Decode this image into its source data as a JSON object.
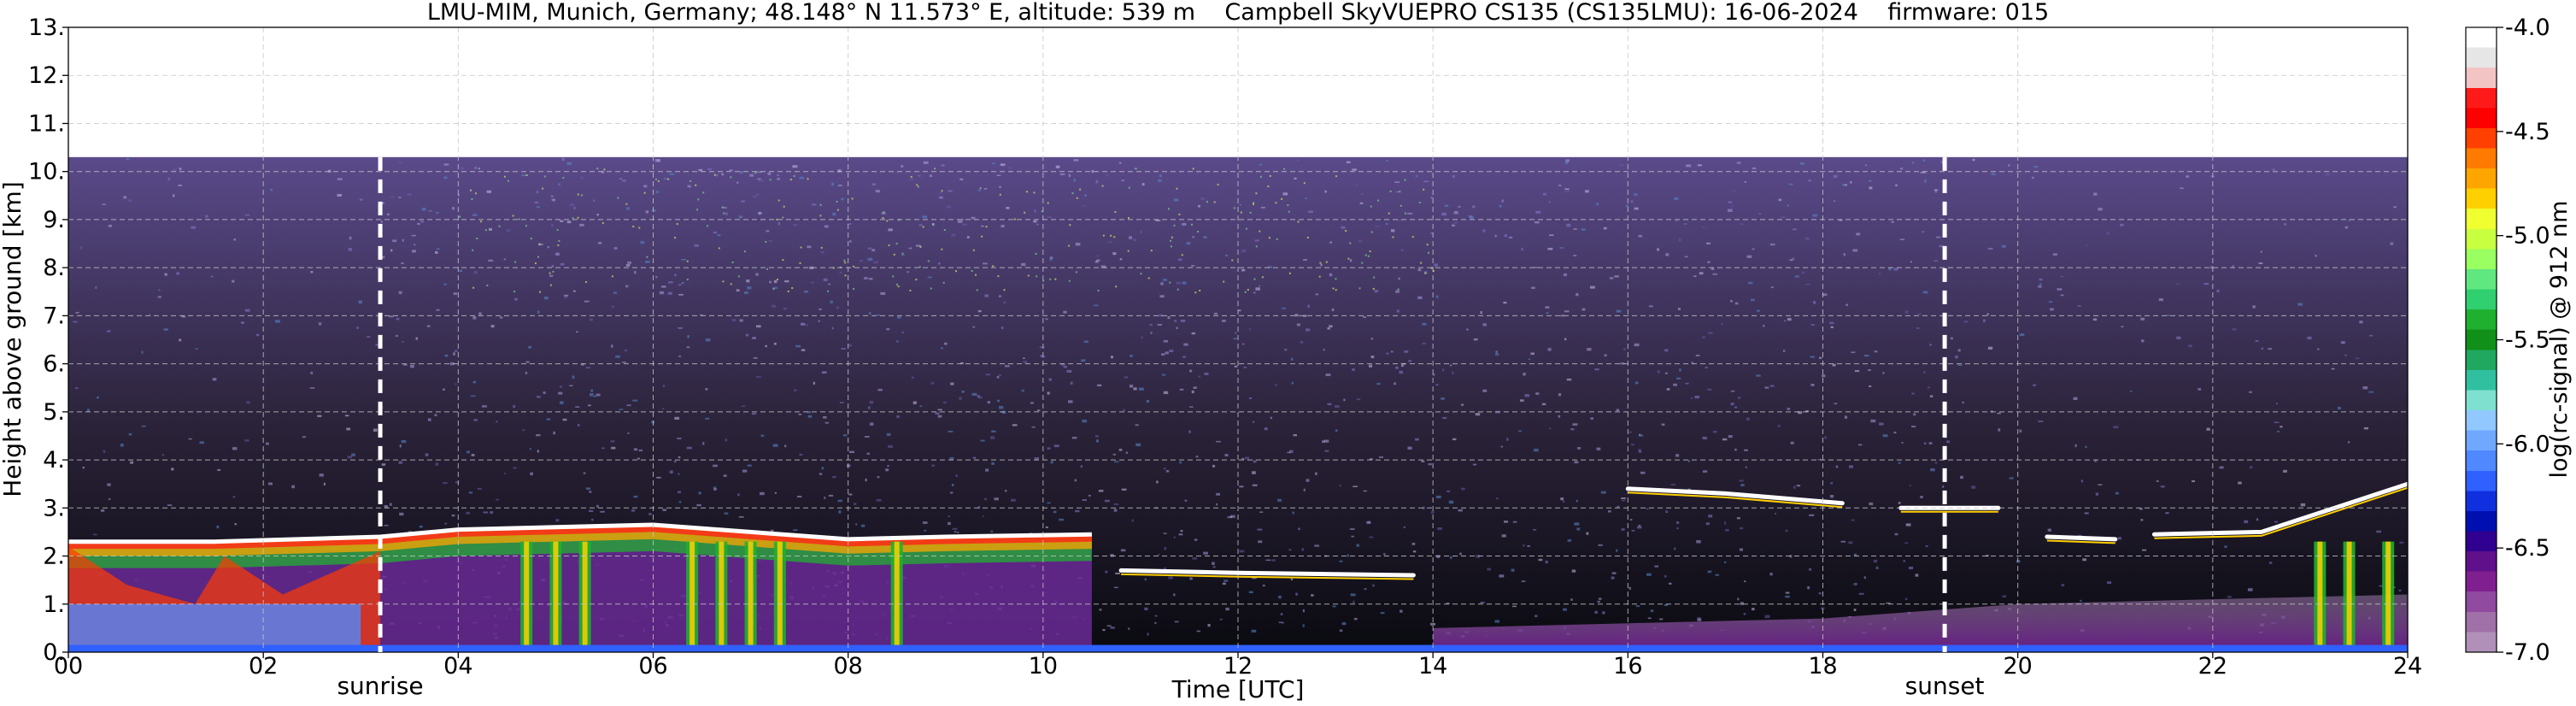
{
  "chart_data": {
    "type": "heatmap",
    "title": "LMU-MIM, Munich, Germany; 48.148° N 11.573° E, altitude: 539 m    Campbell SkyVUEPRO CS135 (CS135LMU): 16-06-2024    firmware: 015",
    "xlabel": "Time [UTC]",
    "ylabel": "Height above ground [km]",
    "xlim": [
      0,
      24
    ],
    "ylim": [
      0,
      13
    ],
    "x_ticks": [
      0,
      2,
      4,
      6,
      8,
      10,
      12,
      14,
      16,
      18,
      20,
      22,
      24
    ],
    "x_tick_labels": [
      "00",
      "02",
      "04",
      "06",
      "08",
      "10",
      "12",
      "14",
      "16",
      "18",
      "20",
      "22",
      "24"
    ],
    "y_ticks": [
      0,
      1,
      2,
      3,
      4,
      5,
      6,
      7,
      8,
      9,
      10,
      11,
      12,
      13
    ],
    "y_tick_labels": [
      "0.",
      "1.",
      "2.",
      "3.",
      "4.",
      "5.",
      "6.",
      "7.",
      "8.",
      "9.",
      "10.",
      "11.",
      "12.",
      "13."
    ],
    "grid": true,
    "data_top_km": 10.3,
    "markers": [
      {
        "label": "sunrise",
        "time": 3.2
      },
      {
        "label": "sunset",
        "time": 19.25
      }
    ],
    "colorbar": {
      "label": "log(rc-signal) @ 912 nm",
      "range": [
        -7.0,
        -4.0
      ],
      "tick_values": [
        -4.0,
        -4.5,
        -5.0,
        -5.5,
        -6.0,
        -6.5,
        -7.0
      ],
      "tick_labels": [
        "-4.0",
        "-4.5",
        "-5.0",
        "-5.5",
        "-6.0",
        "-6.5",
        "-7.0"
      ],
      "colors": [
        "#ffffff",
        "#e6e6e6",
        "#f2c4c4",
        "#ff1a1a",
        "#ff0000",
        "#ff4000",
        "#ff7a00",
        "#ffa500",
        "#ffd000",
        "#f0ff30",
        "#c8ff40",
        "#9aff60",
        "#60e880",
        "#30d070",
        "#20b030",
        "#109018",
        "#20a860",
        "#30c0a0",
        "#80e0d0",
        "#90c8ff",
        "#70a8ff",
        "#5088ff",
        "#3060ff",
        "#1030e0",
        "#0010b0",
        "#300090",
        "#60108a",
        "#802090",
        "#904aa0",
        "#a070a8",
        "#b090b8"
      ]
    },
    "backscatter_features": [
      {
        "kind": "boundary_layer_top",
        "points": [
          [
            0,
            2.3
          ],
          [
            1.5,
            2.3
          ],
          [
            3.2,
            2.4
          ],
          [
            4,
            2.55
          ],
          [
            6,
            2.65
          ],
          [
            8,
            2.35
          ],
          [
            9,
            2.4
          ],
          [
            10.5,
            2.45
          ]
        ]
      },
      {
        "kind": "cloud_layer",
        "points": [
          [
            10.8,
            1.7
          ],
          [
            12,
            1.65
          ],
          [
            13.8,
            1.6
          ]
        ]
      },
      {
        "kind": "cloud_layer",
        "points": [
          [
            16,
            3.4
          ],
          [
            17,
            3.3
          ],
          [
            18.2,
            3.1
          ]
        ]
      },
      {
        "kind": "cloud_layer",
        "points": [
          [
            18.8,
            3.0
          ],
          [
            19.8,
            3.0
          ]
        ]
      },
      {
        "kind": "cloud_layer",
        "points": [
          [
            20.3,
            2.4
          ],
          [
            21,
            2.35
          ]
        ]
      },
      {
        "kind": "cloud_layer",
        "points": [
          [
            21.4,
            2.45
          ],
          [
            22.5,
            2.5
          ],
          [
            23.4,
            3.1
          ],
          [
            24,
            3.5
          ]
        ]
      },
      {
        "kind": "precipitation_streaks",
        "times": [
          4.7,
          5.0,
          5.3,
          6.4,
          6.7,
          7.0,
          7.3,
          8.5,
          23.1,
          23.4,
          23.8
        ]
      },
      {
        "kind": "residual_layer",
        "points": [
          [
            14,
            0.5
          ],
          [
            18,
            0.7
          ],
          [
            20,
            1.0
          ],
          [
            22,
            1.1
          ],
          [
            24,
            1.2
          ]
        ]
      }
    ]
  }
}
